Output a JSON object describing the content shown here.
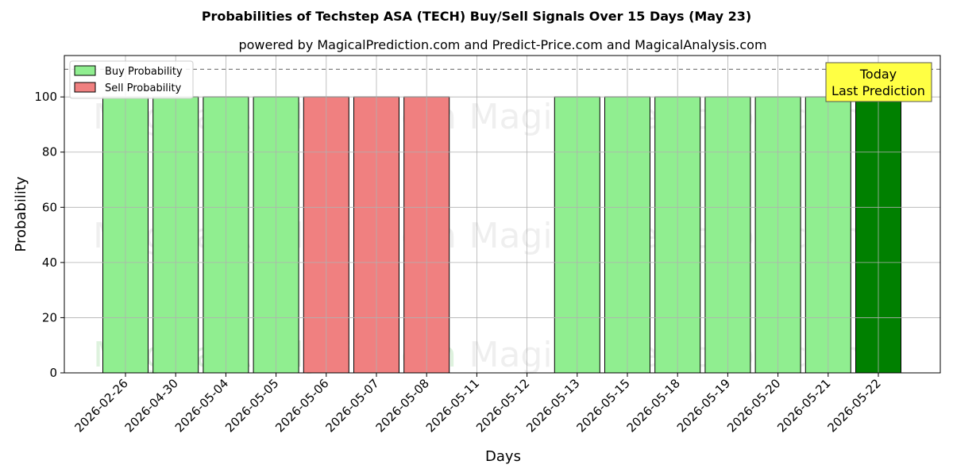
{
  "title": "Probabilities of Techstep ASA (TECH) Buy/Sell Signals Over 15 Days (May 23)",
  "subtitle": "powered by MagicalPrediction.com and Predict-Price.com and MagicalAnalysis.com",
  "watermarks": [
    "MagicalAnalysis.com",
    "MagicalPrediction.com"
  ],
  "annotation": {
    "line1": "Today",
    "line2": "Last Prediction",
    "bg_color": "#ffff44"
  },
  "legend": {
    "buy_label": "Buy Probability",
    "sell_label": "Sell Probability",
    "placement": "top-left"
  },
  "colors": {
    "buy": "#90ee90",
    "sell": "#f08080",
    "today": "#008000"
  },
  "chart_data": {
    "type": "bar",
    "xlabel": "Days",
    "ylabel": "Probability",
    "ylim": [
      0,
      115
    ],
    "yticks": [
      0,
      20,
      40,
      60,
      80,
      100
    ],
    "grid": true,
    "reference_line": 110,
    "categories": [
      "2026-02-26",
      "2026-04-30",
      "2026-05-04",
      "2026-05-05",
      "2026-05-06",
      "2026-05-07",
      "2026-05-08",
      "2026-05-11",
      "2026-05-12",
      "2026-05-13",
      "2026-05-15",
      "2026-05-18",
      "2026-05-19",
      "2026-05-20",
      "2026-05-21",
      "2026-05-22"
    ],
    "series": [
      {
        "name": "Buy Probability",
        "values": [
          100,
          100,
          100,
          100,
          null,
          null,
          null,
          null,
          null,
          100,
          100,
          100,
          100,
          100,
          100,
          100
        ]
      },
      {
        "name": "Sell Probability",
        "values": [
          null,
          null,
          null,
          null,
          100,
          100,
          100,
          null,
          null,
          null,
          null,
          null,
          null,
          null,
          null,
          null
        ]
      }
    ],
    "highlight_category": "2026-05-22"
  }
}
